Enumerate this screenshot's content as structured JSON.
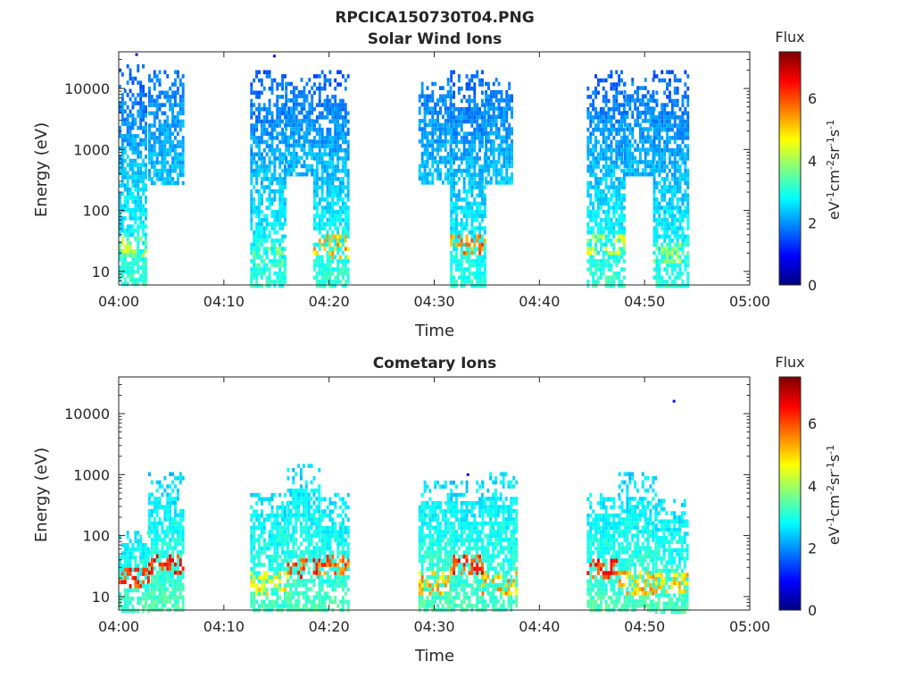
{
  "figure": {
    "title": "RPCICA150730T04.PNG"
  },
  "colorbar": {
    "label": "Flux",
    "unit_base": "eV",
    "unit_sup1": "-1",
    "unit_mid1": "cm",
    "unit_sup2": "-2",
    "unit_mid2": "sr",
    "unit_sup3": "-1",
    "unit_mid3": "s",
    "unit_sup4": "-1",
    "range": [
      0,
      7.5
    ],
    "ticks": [
      "0",
      "2",
      "4",
      "6"
    ],
    "tick_values": [
      0,
      2,
      4,
      6
    ],
    "colormap": "jet"
  },
  "chart_data": [
    {
      "type": "heatmap",
      "title": "Solar Wind Ions",
      "xlabel": "Time",
      "ylabel": "Energy (eV)",
      "x_range": [
        "04:00",
        "05:00"
      ],
      "x_ticks": [
        "04:00",
        "04:10",
        "04:20",
        "04:30",
        "04:40",
        "04:50",
        "05:00"
      ],
      "x_tick_minutes": [
        0,
        10,
        20,
        30,
        40,
        50,
        60
      ],
      "y_scale": "log",
      "y_range": [
        6,
        40000
      ],
      "y_ticks": [
        "10",
        "100",
        "1000",
        "10000"
      ],
      "y_tick_values": [
        10,
        100,
        1000,
        10000
      ],
      "blocks": [
        {
          "t0": 0.0,
          "t1": 2.6,
          "e_min": 6,
          "e_max": 25000,
          "flux_low": 3.2,
          "flux_high": 1.6,
          "hot_energy": 28,
          "hot_flux": 4.6
        },
        {
          "t0": 2.8,
          "t1": 6.0,
          "e_min": 300,
          "e_max": 20000,
          "flux_low": 2.4,
          "flux_high": 1.8,
          "hot_energy": 0,
          "hot_flux": 0
        },
        {
          "t0": 12.5,
          "t1": 15.8,
          "e_min": 6,
          "e_max": 20000,
          "flux_low": 3.1,
          "flux_high": 1.6,
          "hot_energy": 20,
          "hot_flux": 4.0
        },
        {
          "t0": 15.8,
          "t1": 18.5,
          "e_min": 400,
          "e_max": 15000,
          "flux_low": 2.3,
          "flux_high": 1.8,
          "hot_energy": 0,
          "hot_flux": 0
        },
        {
          "t0": 18.5,
          "t1": 21.8,
          "e_min": 6,
          "e_max": 20000,
          "flux_low": 3.2,
          "flux_high": 1.6,
          "hot_energy": 28,
          "hot_flux": 5.8
        },
        {
          "t0": 28.5,
          "t1": 31.5,
          "e_min": 300,
          "e_max": 15000,
          "flux_low": 2.4,
          "flux_high": 1.8,
          "hot_energy": 0,
          "hot_flux": 0
        },
        {
          "t0": 31.5,
          "t1": 34.8,
          "e_min": 6,
          "e_max": 20000,
          "flux_low": 3.1,
          "flux_high": 1.6,
          "hot_energy": 30,
          "hot_flux": 6.2
        },
        {
          "t0": 34.8,
          "t1": 37.5,
          "e_min": 300,
          "e_max": 15000,
          "flux_low": 2.4,
          "flux_high": 1.8,
          "hot_energy": 0,
          "hot_flux": 0
        },
        {
          "t0": 44.5,
          "t1": 48.0,
          "e_min": 6,
          "e_max": 20000,
          "flux_low": 3.2,
          "flux_high": 1.6,
          "hot_energy": 30,
          "hot_flux": 5.0
        },
        {
          "t0": 48.0,
          "t1": 50.8,
          "e_min": 400,
          "e_max": 15000,
          "flux_low": 2.3,
          "flux_high": 1.8,
          "hot_energy": 0,
          "hot_flux": 0
        },
        {
          "t0": 50.8,
          "t1": 54.0,
          "e_min": 6,
          "e_max": 20000,
          "flux_low": 3.1,
          "flux_high": 1.6,
          "hot_energy": 22,
          "hot_flux": 4.5
        }
      ],
      "points": [
        {
          "t": 1.7,
          "e": 36000,
          "flux": 1.0
        },
        {
          "t": 14.8,
          "e": 34000,
          "flux": 1.0
        }
      ]
    },
    {
      "type": "heatmap",
      "title": "Cometary Ions",
      "xlabel": "Time",
      "ylabel": "Energy (eV)",
      "x_range": [
        "04:00",
        "05:00"
      ],
      "x_ticks": [
        "04:00",
        "04:10",
        "04:20",
        "04:30",
        "04:40",
        "04:50",
        "05:00"
      ],
      "x_tick_minutes": [
        0,
        10,
        20,
        30,
        40,
        50,
        60
      ],
      "y_scale": "log",
      "y_range": [
        6,
        40000
      ],
      "y_ticks": [
        "10",
        "100",
        "1000",
        "10000"
      ],
      "y_tick_values": [
        10,
        100,
        1000,
        10000
      ],
      "blocks": [
        {
          "t0": 0.0,
          "t1": 2.8,
          "e_min": 6,
          "e_max": 120,
          "flux_low": 3.3,
          "flux_high": 2.6,
          "hot_energy": 22,
          "hot_flux": 6.8
        },
        {
          "t0": 2.8,
          "t1": 6.0,
          "e_min": 6,
          "e_max": 1100,
          "flux_low": 3.4,
          "flux_high": 2.5,
          "hot_energy": 35,
          "hot_flux": 7.0
        },
        {
          "t0": 12.5,
          "t1": 16.0,
          "e_min": 6,
          "e_max": 500,
          "flux_low": 3.3,
          "flux_high": 2.6,
          "hot_energy": 18,
          "hot_flux": 5.2
        },
        {
          "t0": 16.0,
          "t1": 19.0,
          "e_min": 6,
          "e_max": 1500,
          "flux_low": 3.4,
          "flux_high": 2.5,
          "hot_energy": 30,
          "hot_flux": 6.8
        },
        {
          "t0": 19.0,
          "t1": 21.8,
          "e_min": 6,
          "e_max": 500,
          "flux_low": 3.3,
          "flux_high": 2.6,
          "hot_energy": 35,
          "hot_flux": 6.5
        },
        {
          "t0": 28.5,
          "t1": 31.5,
          "e_min": 6,
          "e_max": 800,
          "flux_low": 3.4,
          "flux_high": 2.6,
          "hot_energy": 18,
          "hot_flux": 5.8
        },
        {
          "t0": 31.5,
          "t1": 34.5,
          "e_min": 6,
          "e_max": 800,
          "flux_low": 3.4,
          "flux_high": 2.5,
          "hot_energy": 35,
          "hot_flux": 6.8
        },
        {
          "t0": 34.5,
          "t1": 37.8,
          "e_min": 6,
          "e_max": 1100,
          "flux_low": 3.3,
          "flux_high": 2.6,
          "hot_energy": 18,
          "hot_flux": 5.8
        },
        {
          "t0": 44.5,
          "t1": 47.5,
          "e_min": 6,
          "e_max": 500,
          "flux_low": 3.4,
          "flux_high": 2.6,
          "hot_energy": 30,
          "hot_flux": 6.8
        },
        {
          "t0": 47.5,
          "t1": 51.0,
          "e_min": 6,
          "e_max": 1100,
          "flux_low": 3.4,
          "flux_high": 2.5,
          "hot_energy": 18,
          "hot_flux": 5.8
        },
        {
          "t0": 51.0,
          "t1": 54.0,
          "e_min": 6,
          "e_max": 400,
          "flux_low": 3.3,
          "flux_high": 2.6,
          "hot_energy": 18,
          "hot_flux": 5.5
        }
      ],
      "points": [
        {
          "t": 33.2,
          "e": 1000,
          "flux": 1.0
        },
        {
          "t": 52.8,
          "e": 16000,
          "flux": 1.0
        }
      ]
    }
  ]
}
